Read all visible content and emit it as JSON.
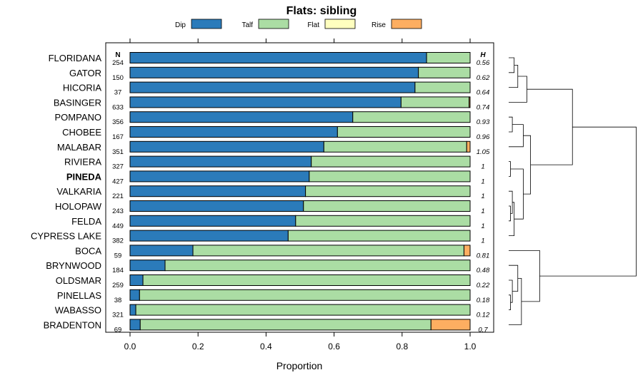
{
  "chart_data": {
    "type": "bar",
    "stacked": true,
    "orientation": "horizontal",
    "title": "Flats: sibling",
    "xlabel": "Proportion",
    "ylabel": "",
    "xlim": [
      0,
      1
    ],
    "xticks": [
      "0.0",
      "0.2",
      "0.4",
      "0.6",
      "0.8",
      "1.0"
    ],
    "xtick_values": [
      0,
      0.2,
      0.4,
      0.6,
      0.8,
      1.0
    ],
    "n_header": "N",
    "h_header": "H",
    "legend_position": "top",
    "highlighted_category": "PINEDA",
    "categories": [
      "FLORIDANA",
      "GATOR",
      "HICORIA",
      "BASINGER",
      "POMPANO",
      "CHOBEE",
      "MALABAR",
      "RIVIERA",
      "PINEDA",
      "VALKARIA",
      "HOLOPAW",
      "FELDA",
      "CYPRESS LAKE",
      "BOCA",
      "BRYNWOOD",
      "OLDSMAR",
      "PINELLAS",
      "WABASSO",
      "BRADENTON"
    ],
    "n_values": [
      "254",
      "150",
      "37",
      "633",
      "356",
      "167",
      "351",
      "327",
      "427",
      "221",
      "243",
      "449",
      "382",
      "59",
      "184",
      "259",
      "38",
      "321",
      "69"
    ],
    "h_values": [
      "0.56",
      "0.62",
      "0.64",
      "0.74",
      "0.93",
      "0.96",
      "1.05",
      "1",
      "1",
      "1",
      "1",
      "1",
      "1",
      "0.81",
      "0.48",
      "0.22",
      "0.18",
      "0.12",
      "0.7"
    ],
    "series": [
      {
        "name": "Dip",
        "color": "#2b7bba",
        "values": [
          0.872,
          0.848,
          0.838,
          0.797,
          0.655,
          0.61,
          0.57,
          0.533,
          0.527,
          0.516,
          0.51,
          0.487,
          0.465,
          0.185,
          0.103,
          0.038,
          0.028,
          0.017,
          0.03
        ]
      },
      {
        "name": "Talf",
        "color": "#abdda4",
        "values": [
          0.128,
          0.152,
          0.162,
          0.2,
          0.345,
          0.39,
          0.42,
          0.467,
          0.473,
          0.484,
          0.49,
          0.513,
          0.535,
          0.797,
          0.897,
          0.962,
          0.972,
          0.983,
          0.855
        ]
      },
      {
        "name": "Flat",
        "color": "#ffffbf",
        "values": [
          0,
          0,
          0,
          0,
          0,
          0,
          0,
          0,
          0,
          0,
          0,
          0,
          0,
          0,
          0,
          0,
          0,
          0,
          0
        ]
      },
      {
        "name": "Rise",
        "color": "#fdae61",
        "values": [
          0,
          0,
          0,
          0.003,
          0,
          0,
          0.01,
          0,
          0,
          0,
          0,
          0,
          0,
          0.018,
          0,
          0,
          0,
          0,
          0.115
        ]
      }
    ],
    "dendrogram": {
      "description": "hierarchical clustering of rows",
      "merges": [
        {
          "left": "FLORIDANA",
          "right": "GATOR",
          "height": 0.03
        },
        {
          "left": "m0",
          "right": "HICORIA",
          "height": 0.05
        },
        {
          "left": "m1",
          "right": "BASINGER",
          "height": 0.1
        },
        {
          "left": "POMPANO",
          "right": "CHOBEE",
          "height": 0.02
        },
        {
          "left": "m3",
          "right": "MALABAR",
          "height": 0.08
        },
        {
          "left": "RIVIERA",
          "right": "PINEDA",
          "height": 0.01
        },
        {
          "left": "HOLOPAW",
          "right": "FELDA",
          "height": 0.01
        },
        {
          "left": "VALKARIA",
          "right": "m6",
          "height": 0.02
        },
        {
          "left": "m7",
          "right": "CYPRESS LAKE",
          "height": 0.03
        },
        {
          "left": "m5",
          "right": "m8",
          "height": 0.08
        },
        {
          "left": "m4",
          "right": "m9",
          "height": 0.12
        },
        {
          "left": "m2",
          "right": "m10",
          "height": 0.35
        },
        {
          "left": "PINELLAS",
          "right": "WABASSO",
          "height": 0.01
        },
        {
          "left": "OLDSMAR",
          "right": "m12",
          "height": 0.02
        },
        {
          "left": "BRYNWOOD",
          "right": "m13",
          "height": 0.05
        },
        {
          "left": "m14",
          "right": "BRADENTON",
          "height": 0.07
        },
        {
          "left": "BOCA",
          "right": "m15",
          "height": 0.17
        },
        {
          "left": "m11",
          "right": "m16",
          "height": 0.7
        }
      ]
    }
  }
}
